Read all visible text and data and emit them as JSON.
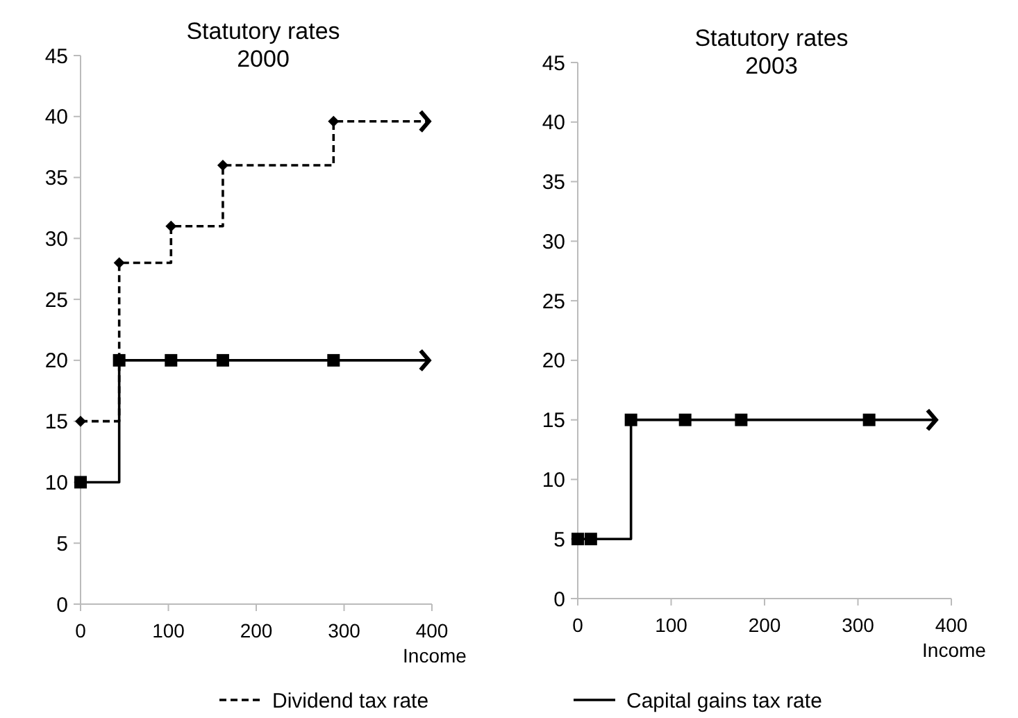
{
  "chart_data": [
    {
      "type": "step",
      "title": "Statutory rates",
      "subtitle": "2000",
      "xlabel": "Income",
      "xlim": [
        0,
        400
      ],
      "xticks": [
        0,
        100,
        200,
        300,
        400
      ],
      "ylim": [
        0,
        45
      ],
      "yticks": [
        0,
        5,
        10,
        15,
        20,
        25,
        30,
        35,
        40,
        45
      ],
      "grid": false,
      "legend": "bottom",
      "series": [
        {
          "name": "Dividend tax rate",
          "color": "#000000",
          "line_style": "dashed",
          "marker": "diamond",
          "x": [
            0,
            44,
            103,
            162,
            288,
            395
          ],
          "values": [
            15,
            28,
            31,
            36,
            39.6,
            39.6
          ]
        },
        {
          "name": "Capital gains tax rate",
          "color": "#000000",
          "line_style": "solid",
          "marker": "square",
          "x": [
            0,
            44,
            103,
            162,
            288,
            395
          ],
          "values": [
            10,
            20,
            20,
            20,
            20,
            20
          ]
        }
      ]
    },
    {
      "type": "step",
      "title": "Statutory rates",
      "subtitle": "2003",
      "xlabel": "Income",
      "xlim": [
        0,
        400
      ],
      "xticks": [
        0,
        100,
        200,
        300,
        400
      ],
      "ylim": [
        0,
        45
      ],
      "yticks": [
        0,
        5,
        10,
        15,
        20,
        25,
        30,
        35,
        40,
        45
      ],
      "grid": false,
      "series": [
        {
          "color": "#000000",
          "line_style": "solid",
          "marker": "square",
          "x": [
            0,
            14,
            57,
            115,
            175,
            312,
            382
          ],
          "values": [
            5,
            5,
            15,
            15,
            15,
            15,
            15
          ]
        }
      ]
    }
  ]
}
